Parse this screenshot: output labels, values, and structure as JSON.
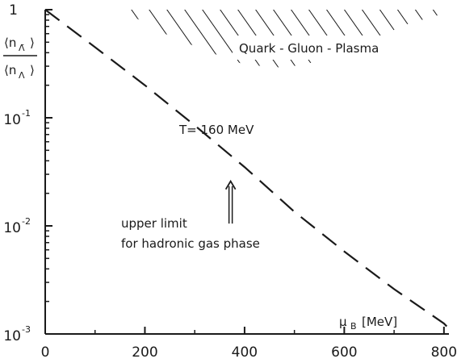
{
  "chart_data": {
    "type": "line",
    "x_scale": "linear",
    "y_scale": "log",
    "xlim": [
      0,
      810
    ],
    "ylim": [
      0.001,
      1
    ],
    "x_ticks": [
      0,
      200,
      400,
      600,
      800
    ],
    "x_tick_labels": [
      "0",
      "200",
      "400",
      "600",
      "800"
    ],
    "y_tick_labels": [
      {
        "value": 1,
        "base": "1",
        "exp": ""
      },
      {
        "value": 0.1,
        "base": "10",
        "exp": "-1"
      },
      {
        "value": 0.01,
        "base": "10",
        "exp": "-2"
      },
      {
        "value": 0.001,
        "base": "10",
        "exp": "-3"
      }
    ],
    "xlabel": {
      "main": "μ",
      "sub": "B",
      "unit": "[MeV]"
    },
    "ylabel": {
      "numerator": "⟨n",
      "numerator_sub": "Λ̄",
      "denominator": "⟨n",
      "denominator_sub": "Λ",
      "close": "⟩"
    },
    "series": [
      {
        "name": "T= 160 MeV",
        "style": "dashed",
        "color": "#1a1a1a",
        "x": [
          0,
          100,
          200,
          300,
          400,
          500,
          600,
          700,
          800,
          810
        ],
        "y": [
          1.0,
          0.45,
          0.2,
          0.085,
          0.035,
          0.0135,
          0.0058,
          0.0026,
          0.00125,
          0.00112
        ]
      }
    ],
    "region": {
      "label": "Quark - Gluon - Plasma",
      "hatch": true,
      "x": [
        160,
        810
      ],
      "y_low": [
        0.95,
        0.6,
        0.42,
        0.31,
        0.29,
        0.34,
        0.48,
        0.72,
        0.95
      ],
      "x_boundary": [
        160,
        240,
        320,
        400,
        480,
        560,
        640,
        720,
        810
      ]
    },
    "annotations": [
      {
        "text": "upper limit",
        "line": 1
      },
      {
        "text": "for hadronic gas phase",
        "line": 2
      }
    ],
    "arrow": {
      "x": 372,
      "y_from": 0.0105,
      "y_to": 0.025,
      "style": "double"
    },
    "grid": false
  }
}
